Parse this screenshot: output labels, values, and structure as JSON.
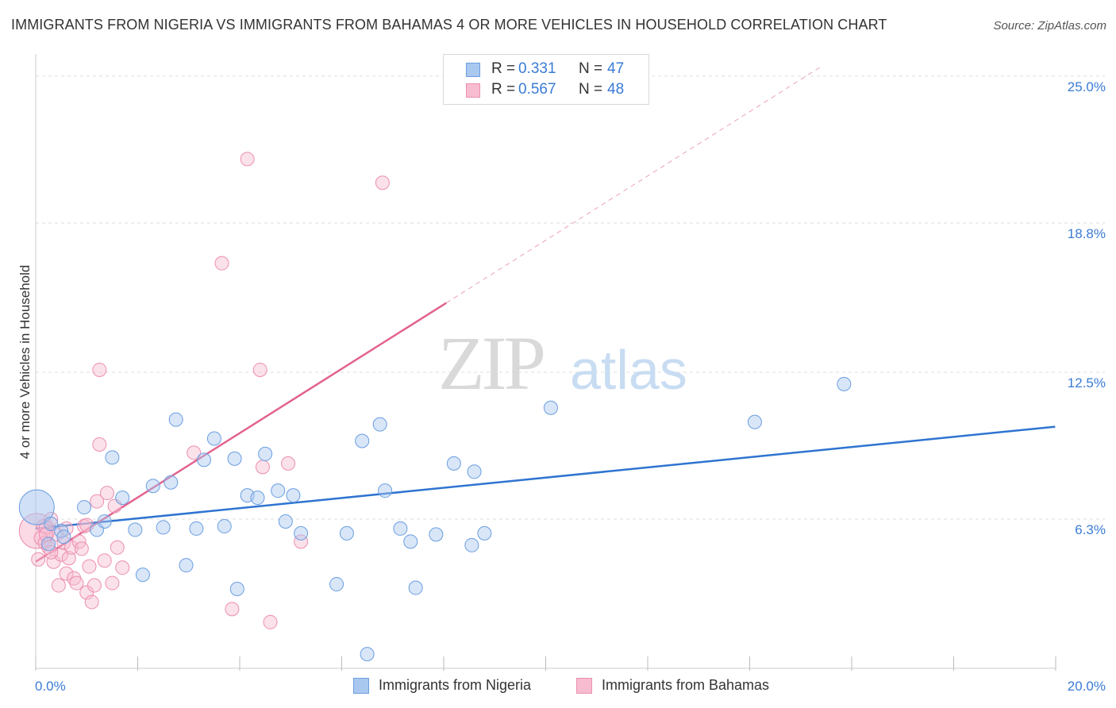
{
  "title": "IMMIGRANTS FROM NIGERIA VS IMMIGRANTS FROM BAHAMAS 4 OR MORE VEHICLES IN HOUSEHOLD CORRELATION CHART",
  "source": "Source: ZipAtlas.com",
  "watermark": {
    "zip": "ZIP",
    "atlas": "atlas"
  },
  "colors": {
    "nigeria_fill": "#a9c8f0",
    "nigeria_stroke": "#6b9ee0",
    "nigeria_line": "#2f74d0",
    "bahamas_fill": "#f7bcd0",
    "bahamas_stroke": "#ec8fb0",
    "bahamas_line": "#e2628f",
    "tick_label": "#3a7bd5",
    "grid": "#dddddd"
  },
  "legend": {
    "rows": [
      {
        "r_label": "R =",
        "r_value": "0.331",
        "n_label": "N =",
        "n_value": "47"
      },
      {
        "r_label": "R =",
        "r_value": "0.567",
        "n_label": "N =",
        "n_value": "48"
      }
    ]
  },
  "chart_data": {
    "type": "scatter",
    "title": "IMMIGRANTS FROM NIGERIA VS IMMIGRANTS FROM BAHAMAS 4 OR MORE VEHICLES IN HOUSEHOLD CORRELATION CHART",
    "xlabel": "",
    "ylabel": "4 or more Vehicles in Household",
    "xlim": [
      0,
      20
    ],
    "ylim": [
      0,
      25.6
    ],
    "x_tick_labels": [
      "0.0%",
      "20.0%"
    ],
    "y_ticks": [
      6.3,
      12.5,
      18.8,
      25.0
    ],
    "y_tick_labels": [
      "6.3%",
      "12.5%",
      "18.8%",
      "25.0%"
    ],
    "grid": true,
    "legend_position": "top-center",
    "series": [
      {
        "name": "Immigrants from Nigeria",
        "R": 0.331,
        "N": 47,
        "trend": {
          "x0": 0,
          "y0": 5.9,
          "x1": 19.99,
          "y1": 10.2,
          "solid_until": 19.99
        },
        "points": [
          [
            0.02,
            6.8,
            "big"
          ],
          [
            0.25,
            5.25
          ],
          [
            0.3,
            6.1
          ],
          [
            0.5,
            5.8
          ],
          [
            0.55,
            5.55
          ],
          [
            0.95,
            6.8
          ],
          [
            1.2,
            5.85
          ],
          [
            1.35,
            6.2
          ],
          [
            1.5,
            8.9
          ],
          [
            1.7,
            7.2
          ],
          [
            1.95,
            5.85
          ],
          [
            2.1,
            3.95
          ],
          [
            2.3,
            7.7
          ],
          [
            2.5,
            5.95
          ],
          [
            2.65,
            7.85
          ],
          [
            2.75,
            10.5
          ],
          [
            2.95,
            4.35
          ],
          [
            3.15,
            5.9
          ],
          [
            3.3,
            8.8
          ],
          [
            3.5,
            9.7
          ],
          [
            3.7,
            6.0
          ],
          [
            3.9,
            8.85
          ],
          [
            3.95,
            3.35
          ],
          [
            4.15,
            7.3
          ],
          [
            4.35,
            7.2
          ],
          [
            4.5,
            9.05
          ],
          [
            4.75,
            7.5
          ],
          [
            4.9,
            6.2
          ],
          [
            5.05,
            7.3
          ],
          [
            5.2,
            5.7
          ],
          [
            5.9,
            3.55
          ],
          [
            6.1,
            5.7
          ],
          [
            6.5,
            0.6
          ],
          [
            6.4,
            9.6
          ],
          [
            6.75,
            10.3
          ],
          [
            6.85,
            7.5
          ],
          [
            7.15,
            5.9
          ],
          [
            7.35,
            5.35
          ],
          [
            7.45,
            3.4
          ],
          [
            7.85,
            5.65
          ],
          [
            8.2,
            8.65
          ],
          [
            8.55,
            5.2
          ],
          [
            8.6,
            8.3
          ],
          [
            8.8,
            5.7
          ],
          [
            10.1,
            11.0
          ],
          [
            14.1,
            10.4
          ],
          [
            15.85,
            12.0
          ]
        ]
      },
      {
        "name": "Immigrants from Bahamas",
        "R": 0.567,
        "N": 48,
        "trend": {
          "x0": 0,
          "y0": 4.5,
          "x1": 15.4,
          "y1": 25.4,
          "solid_until": 8.05
        },
        "points": [
          [
            0.02,
            5.8,
            "big"
          ],
          [
            0.05,
            4.6
          ],
          [
            0.1,
            5.5
          ],
          [
            0.15,
            6.0
          ],
          [
            0.18,
            5.3
          ],
          [
            0.2,
            5.95
          ],
          [
            0.25,
            5.1
          ],
          [
            0.3,
            6.3
          ],
          [
            0.35,
            4.5
          ],
          [
            0.4,
            5.65
          ],
          [
            0.45,
            3.5
          ],
          [
            0.5,
            4.8
          ],
          [
            0.55,
            5.3
          ],
          [
            0.6,
            4.0
          ],
          [
            0.65,
            4.65
          ],
          [
            0.7,
            5.1
          ],
          [
            0.75,
            3.8
          ],
          [
            0.8,
            3.6
          ],
          [
            0.85,
            5.35
          ],
          [
            0.9,
            5.05
          ],
          [
            0.95,
            6.0
          ],
          [
            1.0,
            3.2
          ],
          [
            1.05,
            4.3
          ],
          [
            1.1,
            2.8
          ],
          [
            1.15,
            3.5
          ],
          [
            1.2,
            7.05
          ],
          [
            1.25,
            12.6
          ],
          [
            1.35,
            4.55
          ],
          [
            1.4,
            7.4
          ],
          [
            1.5,
            3.6
          ],
          [
            1.55,
            6.85
          ],
          [
            1.6,
            5.1
          ],
          [
            1.7,
            4.25
          ],
          [
            1.25,
            9.45
          ],
          [
            3.1,
            9.1
          ],
          [
            3.65,
            17.1
          ],
          [
            3.85,
            2.5
          ],
          [
            4.15,
            21.5
          ],
          [
            4.4,
            12.6
          ],
          [
            4.45,
            8.5
          ],
          [
            4.6,
            1.95
          ],
          [
            4.95,
            8.65
          ],
          [
            5.2,
            5.35
          ],
          [
            6.8,
            20.5
          ],
          [
            0.3,
            4.9
          ],
          [
            0.6,
            5.9
          ],
          [
            1.0,
            6.05
          ],
          [
            0.2,
            5.65
          ]
        ]
      }
    ]
  }
}
